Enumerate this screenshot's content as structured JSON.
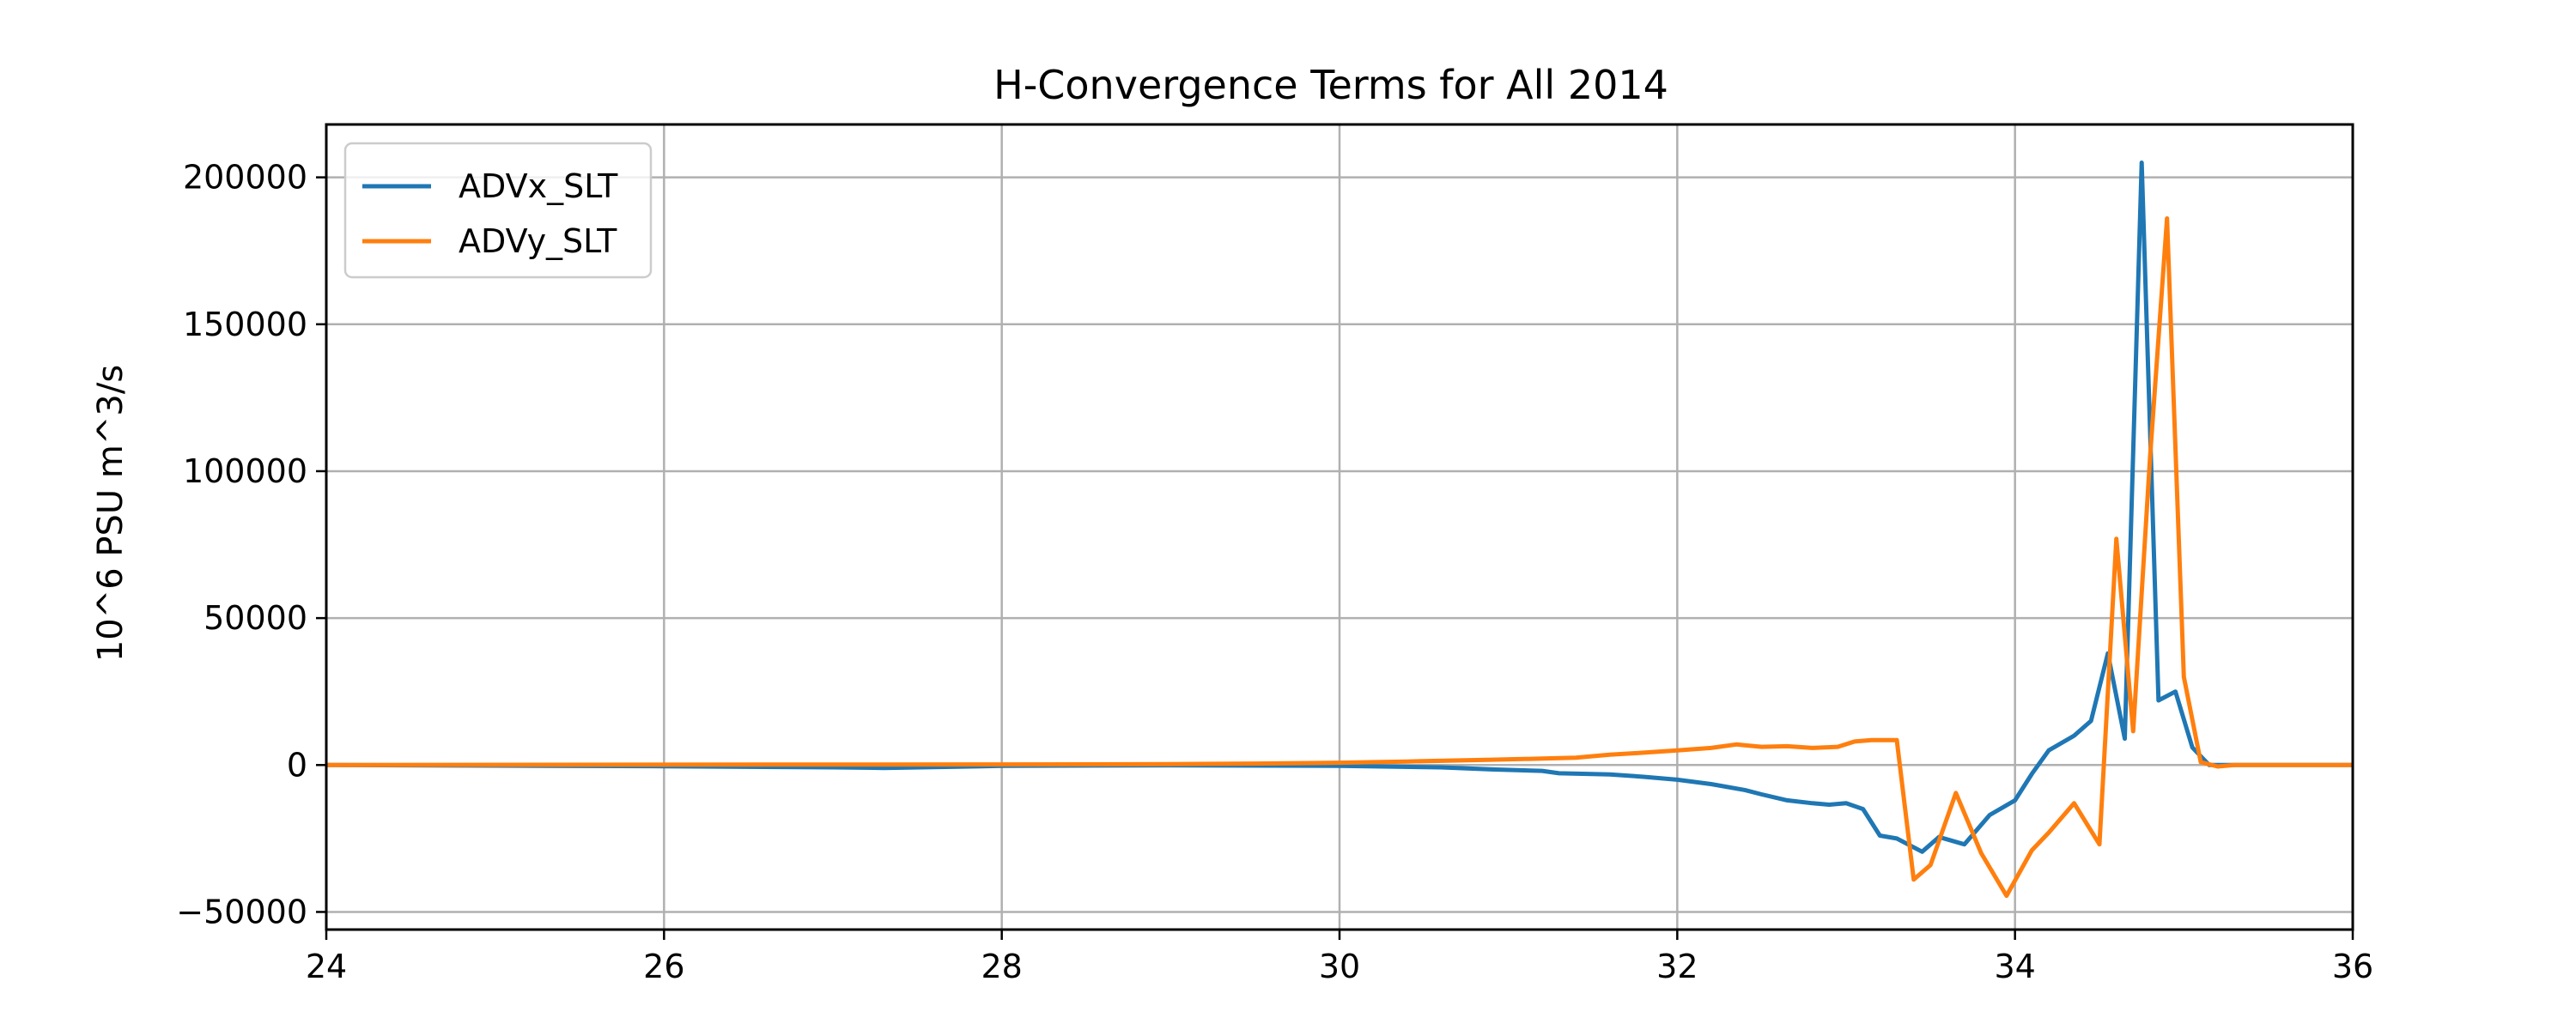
{
  "chart_data": {
    "type": "line",
    "title": "H-Convergence Terms for All 2014",
    "xlabel": "",
    "ylabel": "10^6 PSU m^3/s",
    "xlim": [
      24,
      36
    ],
    "ylim": [
      -56000,
      218000
    ],
    "xticks": [
      24,
      26,
      28,
      30,
      32,
      34,
      36
    ],
    "yticks": [
      -50000,
      0,
      50000,
      100000,
      150000,
      200000
    ],
    "xtick_labels": [
      "24",
      "26",
      "28",
      "30",
      "32",
      "34",
      "36"
    ],
    "ytick_labels": [
      "−50000",
      "0",
      "50000",
      "100000",
      "150000",
      "200000"
    ],
    "grid": true,
    "legend_position": "top-left",
    "series": [
      {
        "name": "ADVx_SLT",
        "color": "#1f77b4",
        "points": [
          [
            24,
            0
          ],
          [
            25,
            -200
          ],
          [
            26,
            -400
          ],
          [
            27,
            -800
          ],
          [
            27.3,
            -1000
          ],
          [
            28,
            -300
          ],
          [
            29,
            -100
          ],
          [
            30,
            -300
          ],
          [
            30.6,
            -800
          ],
          [
            30.9,
            -1500
          ],
          [
            31.2,
            -2000
          ],
          [
            31.3,
            -2800
          ],
          [
            31.6,
            -3200
          ],
          [
            31.8,
            -4000
          ],
          [
            32.0,
            -5000
          ],
          [
            32.2,
            -6500
          ],
          [
            32.4,
            -8500
          ],
          [
            32.5,
            -10000
          ],
          [
            32.65,
            -12000
          ],
          [
            32.8,
            -13000
          ],
          [
            32.9,
            -13500
          ],
          [
            33.0,
            -13000
          ],
          [
            33.1,
            -15000
          ],
          [
            33.2,
            -24000
          ],
          [
            33.3,
            -25000
          ],
          [
            33.45,
            -29500
          ],
          [
            33.55,
            -24500
          ],
          [
            33.7,
            -27000
          ],
          [
            33.85,
            -17000
          ],
          [
            34.0,
            -12000
          ],
          [
            34.1,
            -3000
          ],
          [
            34.2,
            5000
          ],
          [
            34.35,
            10000
          ],
          [
            34.45,
            15000
          ],
          [
            34.55,
            38000
          ],
          [
            34.65,
            9000
          ],
          [
            34.75,
            205000
          ],
          [
            34.85,
            22000
          ],
          [
            34.95,
            25000
          ],
          [
            35.05,
            6000
          ],
          [
            35.15,
            0
          ],
          [
            35.3,
            0
          ],
          [
            36,
            0
          ]
        ]
      },
      {
        "name": "ADVy_SLT",
        "color": "#ff7f0e",
        "points": [
          [
            24,
            0
          ],
          [
            26,
            100
          ],
          [
            28,
            200
          ],
          [
            29,
            300
          ],
          [
            29.5,
            500
          ],
          [
            30.0,
            800
          ],
          [
            30.4,
            1200
          ],
          [
            30.9,
            1800
          ],
          [
            31.2,
            2200
          ],
          [
            31.4,
            2500
          ],
          [
            31.6,
            3500
          ],
          [
            31.8,
            4200
          ],
          [
            32.0,
            5000
          ],
          [
            32.2,
            5800
          ],
          [
            32.35,
            7000
          ],
          [
            32.5,
            6200
          ],
          [
            32.65,
            6400
          ],
          [
            32.8,
            5800
          ],
          [
            32.95,
            6200
          ],
          [
            33.05,
            8000
          ],
          [
            33.15,
            8500
          ],
          [
            33.3,
            8500
          ],
          [
            33.4,
            -39000
          ],
          [
            33.5,
            -34000
          ],
          [
            33.65,
            -9500
          ],
          [
            33.8,
            -30000
          ],
          [
            33.95,
            -44500
          ],
          [
            34.1,
            -29000
          ],
          [
            34.2,
            -23000
          ],
          [
            34.35,
            -13000
          ],
          [
            34.5,
            -27000
          ],
          [
            34.6,
            77000
          ],
          [
            34.7,
            11500
          ],
          [
            34.8,
            105000
          ],
          [
            34.9,
            186000
          ],
          [
            35.0,
            30000
          ],
          [
            35.1,
            1000
          ],
          [
            35.2,
            -500
          ],
          [
            35.3,
            0
          ],
          [
            36,
            0
          ]
        ]
      }
    ]
  }
}
